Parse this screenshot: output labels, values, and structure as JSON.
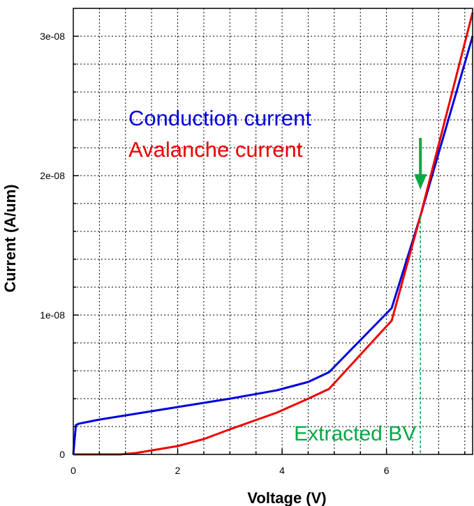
{
  "chart_data": {
    "type": "line",
    "xlabel": "Voltage (V)",
    "ylabel": "Current (A/um)",
    "xlim": [
      0,
      7.65
    ],
    "ylim": [
      0,
      3.2e-08
    ],
    "grid": true,
    "x_ticks": [
      {
        "value": 0,
        "label": "0"
      },
      {
        "value": 2,
        "label": "2"
      },
      {
        "value": 4,
        "label": "4"
      },
      {
        "value": 6,
        "label": "6"
      }
    ],
    "y_ticks": [
      {
        "value": 0,
        "label": "0"
      },
      {
        "value": 1e-08,
        "label": "1e-08"
      },
      {
        "value": 2e-08,
        "label": "2e-08"
      },
      {
        "value": 3e-08,
        "label": "3e-08"
      }
    ],
    "series": [
      {
        "name": "Conduction current",
        "color": "#0000dd",
        "x": [
          0,
          0.05,
          0.1,
          0.5,
          1.0,
          2.0,
          3.0,
          3.9,
          4.5,
          4.9,
          6.1,
          6.65,
          7.65
        ],
        "y": [
          0,
          2.1e-09,
          2.2e-09,
          2.5e-09,
          2.8e-09,
          3.4e-09,
          4e-09,
          4.6e-09,
          5.2e-09,
          5.9e-09,
          1.05e-08,
          1.71e-08,
          3e-08
        ]
      },
      {
        "name": "Avalanche current",
        "color": "#ee0000",
        "x": [
          0,
          0.5,
          0.9,
          1.2,
          2.0,
          2.5,
          3.0,
          3.9,
          4.5,
          4.9,
          6.1,
          6.65,
          7.65
        ],
        "y": [
          0,
          0,
          0,
          1e-10,
          6e-10,
          1.1e-09,
          1.8e-09,
          3e-09,
          4e-09,
          4.7e-09,
          9.6e-09,
          1.71e-08,
          3.17e-08
        ]
      }
    ],
    "annotation": {
      "text": "Extracted BV",
      "x": 6.65,
      "color": "#00aa44"
    }
  }
}
